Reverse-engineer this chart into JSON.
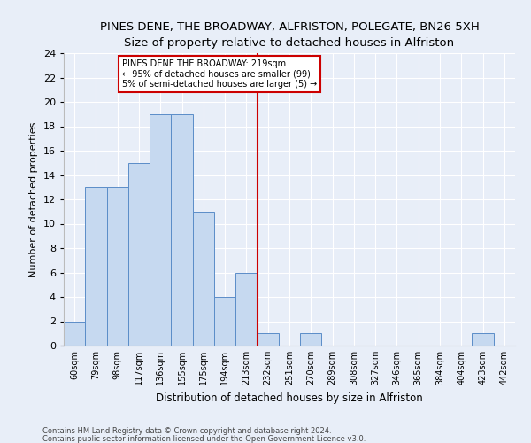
{
  "title1": "PINES DENE, THE BROADWAY, ALFRISTON, POLEGATE, BN26 5XH",
  "title2": "Size of property relative to detached houses in Alfriston",
  "xlabel": "Distribution of detached houses by size in Alfriston",
  "ylabel": "Number of detached properties",
  "categories": [
    "60sqm",
    "79sqm",
    "98sqm",
    "117sqm",
    "136sqm",
    "155sqm",
    "175sqm",
    "194sqm",
    "213sqm",
    "232sqm",
    "251sqm",
    "270sqm",
    "289sqm",
    "308sqm",
    "327sqm",
    "346sqm",
    "365sqm",
    "384sqm",
    "404sqm",
    "423sqm",
    "442sqm"
  ],
  "values": [
    2,
    13,
    13,
    15,
    19,
    19,
    11,
    4,
    6,
    1,
    0,
    1,
    0,
    0,
    0,
    0,
    0,
    0,
    0,
    1,
    0
  ],
  "bar_color": "#c6d9f0",
  "bar_edge_color": "#5b8dc8",
  "vline_x_idx": 8.5,
  "vline_color": "#cc0000",
  "annotation_text": "PINES DENE THE BROADWAY: 219sqm\n← 95% of detached houses are smaller (99)\n5% of semi-detached houses are larger (5) →",
  "annotation_box_color": "#ffffff",
  "annotation_box_edge": "#cc0000",
  "ylim": [
    0,
    24
  ],
  "yticks": [
    0,
    2,
    4,
    6,
    8,
    10,
    12,
    14,
    16,
    18,
    20,
    22,
    24
  ],
  "footer1": "Contains HM Land Registry data © Crown copyright and database right 2024.",
  "footer2": "Contains public sector information licensed under the Open Government Licence v3.0.",
  "bg_color": "#e8eef8",
  "plot_bg_color": "#e8eef8",
  "grid_color": "#ffffff",
  "annotation_fontsize": 7.0,
  "title1_fontsize": 9.5,
  "title2_fontsize": 8.5,
  "xlabel_fontsize": 8.5,
  "ylabel_fontsize": 8.0,
  "xtick_fontsize": 7.0,
  "ytick_fontsize": 8.0,
  "footer_fontsize": 6.0
}
